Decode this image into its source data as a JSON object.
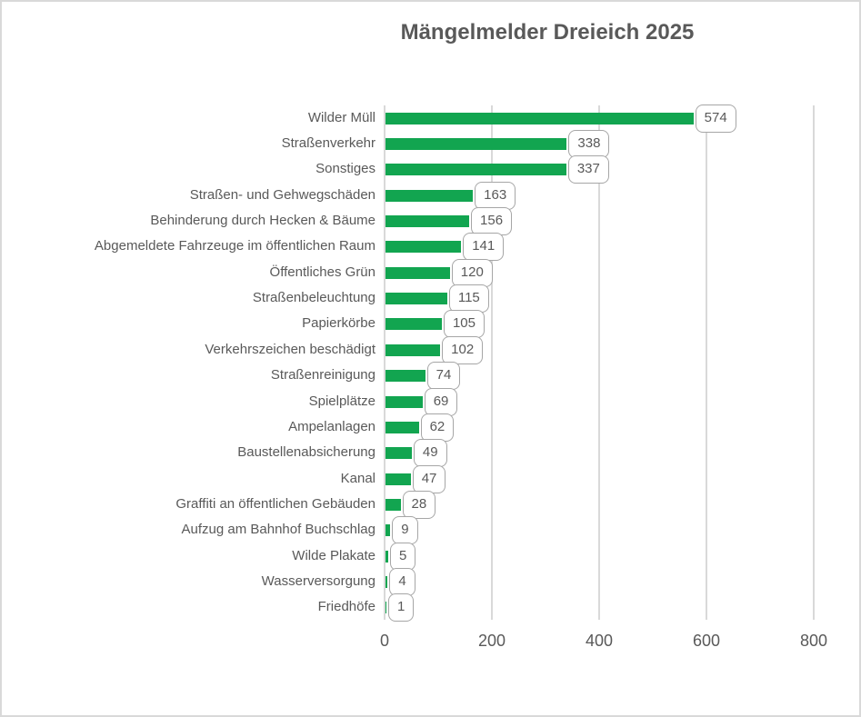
{
  "title": "Mängelmelder Dreieich 2025",
  "colors": {
    "bar_green": "#12a550",
    "text_gray": "#595959",
    "gridline_gray": "#d9d9d9",
    "callout_border_gray": "#a6a6a6",
    "chart_border_gray": "#d9d9d9",
    "background": "#ffffff"
  },
  "chart_data": {
    "type": "bar",
    "orientation": "horizontal",
    "title": "Mängelmelder Dreieich 2025",
    "categories": [
      "Wilder Müll",
      "Straßenverkehr",
      "Sonstiges",
      "Straßen- und Gehwegschäden",
      "Behinderung durch Hecken & Bäume",
      "Abgemeldete Fahrzeuge im öffentlichen Raum",
      "Öffentliches Grün",
      "Straßenbeleuchtung",
      "Papierkörbe",
      "Verkehrszeichen beschädigt",
      "Straßenreinigung",
      "Spielplätze",
      "Ampelanlagen",
      "Baustellenabsicherung",
      "Kanal",
      "Graffiti an öffentlichen Gebäuden",
      "Aufzug am Bahnhof Buchschlag",
      "Wilde Plakate",
      "Wasserversorgung",
      "Friedhöfe"
    ],
    "values": [
      574,
      338,
      337,
      163,
      156,
      141,
      120,
      115,
      105,
      102,
      74,
      69,
      62,
      49,
      47,
      28,
      9,
      5,
      4,
      1
    ],
    "xlabel": "",
    "ylabel": "",
    "xlim": [
      0,
      800
    ],
    "x_ticks": [
      0,
      200,
      400,
      600,
      800
    ],
    "grid": true,
    "legend": false,
    "data_label_style": "rounded-callout"
  }
}
